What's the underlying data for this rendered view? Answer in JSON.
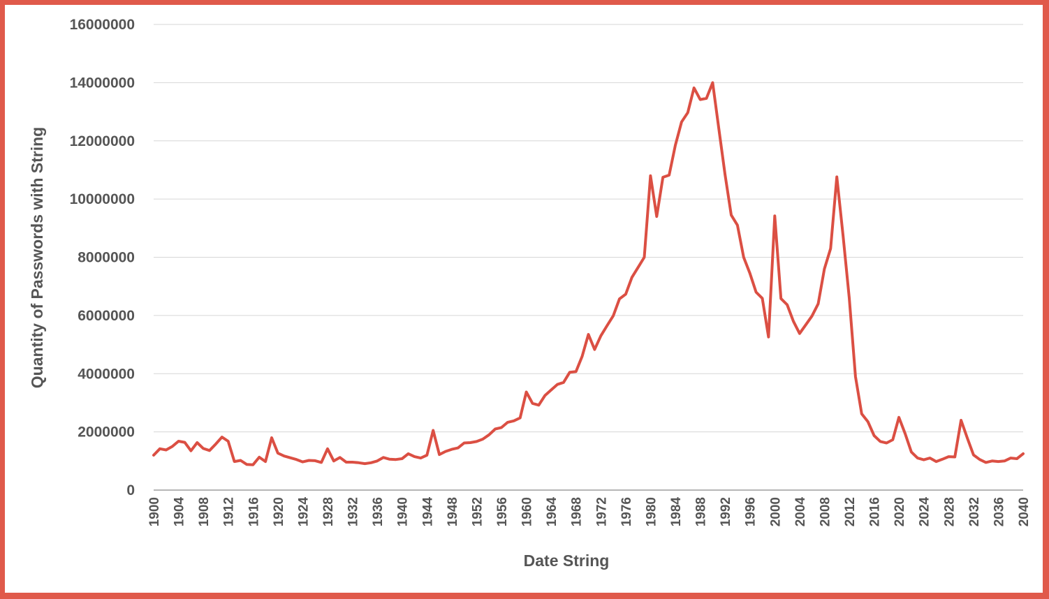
{
  "chart_data": {
    "type": "line",
    "title": "",
    "xlabel": "Date String",
    "ylabel": "Quantity of Passwords with String",
    "ylim": [
      0,
      16000000
    ],
    "y_ticks": [
      0,
      2000000,
      4000000,
      6000000,
      8000000,
      10000000,
      12000000,
      14000000,
      16000000
    ],
    "x_tick_labels": [
      "1900",
      "1904",
      "1908",
      "1912",
      "1916",
      "1920",
      "1924",
      "1928",
      "1932",
      "1936",
      "1940",
      "1944",
      "1948",
      "1952",
      "1956",
      "1960",
      "1964",
      "1968",
      "1972",
      "1976",
      "1980",
      "1984",
      "1988",
      "1992",
      "1996",
      "2000",
      "2004",
      "2008",
      "2012",
      "2016",
      "2020",
      "2024",
      "2028",
      "2032",
      "2036",
      "2040"
    ],
    "grid": true,
    "legend": "none",
    "line_color": "#db4f43",
    "x": [
      1900,
      1901,
      1902,
      1903,
      1904,
      1905,
      1906,
      1907,
      1908,
      1909,
      1910,
      1911,
      1912,
      1913,
      1914,
      1915,
      1916,
      1917,
      1918,
      1919,
      1920,
      1921,
      1922,
      1923,
      1924,
      1925,
      1926,
      1927,
      1928,
      1929,
      1930,
      1931,
      1932,
      1933,
      1934,
      1935,
      1936,
      1937,
      1938,
      1939,
      1940,
      1941,
      1942,
      1943,
      1944,
      1945,
      1946,
      1947,
      1948,
      1949,
      1950,
      1951,
      1952,
      1953,
      1954,
      1955,
      1956,
      1957,
      1958,
      1959,
      1960,
      1961,
      1962,
      1963,
      1964,
      1965,
      1966,
      1967,
      1968,
      1969,
      1970,
      1971,
      1972,
      1973,
      1974,
      1975,
      1976,
      1977,
      1978,
      1979,
      1980,
      1981,
      1982,
      1983,
      1984,
      1985,
      1986,
      1987,
      1988,
      1989,
      1990,
      1991,
      1992,
      1993,
      1994,
      1995,
      1996,
      1997,
      1998,
      1999,
      2000,
      2001,
      2002,
      2003,
      2004,
      2005,
      2006,
      2007,
      2008,
      2009,
      2010,
      2011,
      2012,
      2013,
      2014,
      2015,
      2016,
      2017,
      2018,
      2019,
      2020,
      2021,
      2022,
      2023,
      2024,
      2025,
      2026,
      2027,
      2028,
      2029,
      2030,
      2031,
      2032,
      2033,
      2034,
      2035,
      2036,
      2037,
      2038,
      2039,
      2040
    ],
    "series": [
      {
        "values": [
          1200000,
          1420000,
          1380000,
          1500000,
          1680000,
          1640000,
          1350000,
          1630000,
          1430000,
          1360000,
          1580000,
          1820000,
          1680000,
          980000,
          1020000,
          880000,
          870000,
          1130000,
          980000,
          1800000,
          1270000,
          1170000,
          1110000,
          1050000,
          970000,
          1020000,
          1010000,
          950000,
          1420000,
          1000000,
          1120000,
          960000,
          960000,
          940000,
          910000,
          940000,
          1000000,
          1120000,
          1060000,
          1050000,
          1080000,
          1250000,
          1150000,
          1100000,
          1200000,
          2050000,
          1220000,
          1330000,
          1400000,
          1450000,
          1620000,
          1630000,
          1670000,
          1750000,
          1900000,
          2100000,
          2150000,
          2330000,
          2380000,
          2480000,
          3370000,
          2980000,
          2920000,
          3250000,
          3440000,
          3630000,
          3700000,
          4050000,
          4070000,
          4600000,
          5350000,
          4830000,
          5300000,
          5650000,
          5990000,
          6570000,
          6730000,
          7310000,
          7650000,
          8000000,
          10800000,
          9400000,
          10750000,
          10820000,
          11850000,
          12650000,
          12970000,
          13820000,
          13420000,
          13460000,
          14000000,
          12410000,
          10850000,
          9450000,
          9100000,
          8000000,
          7450000,
          6800000,
          6590000,
          5260000,
          9420000,
          6580000,
          6370000,
          5800000,
          5380000,
          5680000,
          5980000,
          6400000,
          7600000,
          8300000,
          10760000,
          8750000,
          6600000,
          3900000,
          2620000,
          2350000,
          1870000,
          1670000,
          1620000,
          1730000,
          2500000,
          1940000,
          1310000,
          1100000,
          1040000,
          1100000,
          980000,
          1060000,
          1150000,
          1140000,
          2400000,
          1790000,
          1210000,
          1050000,
          950000,
          1000000,
          980000,
          1000000,
          1100000,
          1080000,
          1250000
        ]
      }
    ]
  }
}
